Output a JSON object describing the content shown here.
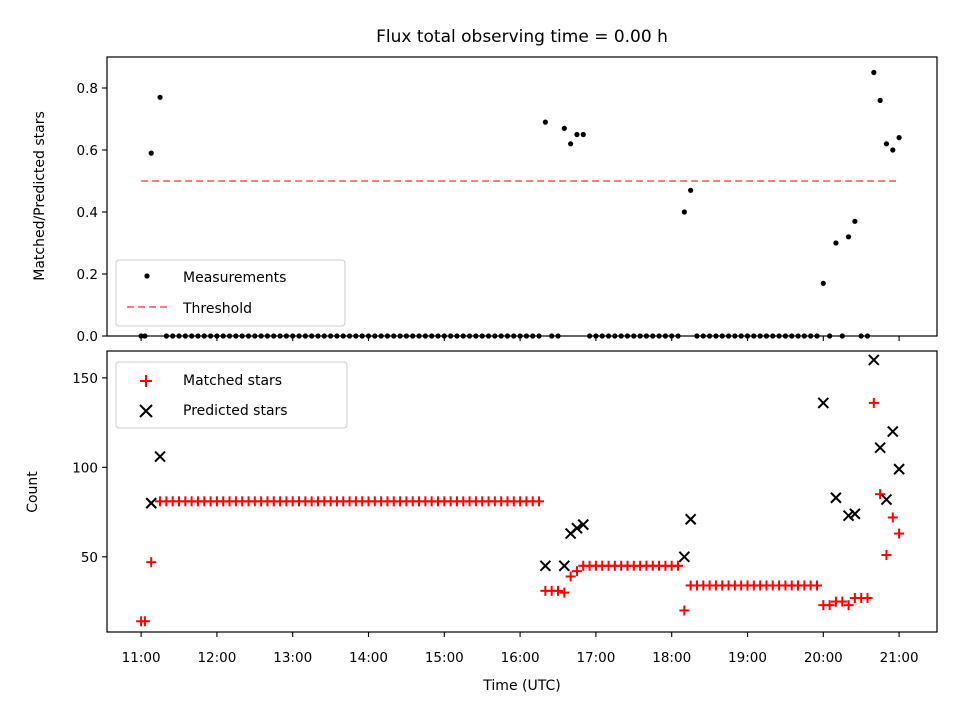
{
  "chart_data": [
    {
      "type": "scatter",
      "title": "Flux total observing time = 0.00 h",
      "xlabel": "",
      "ylabel": "Matched/Predicted stars",
      "ylim": [
        0,
        0.9
      ],
      "xlim": [
        "10:33",
        "21:30"
      ],
      "yticks": [
        "0.0",
        "0.2",
        "0.4",
        "0.6",
        "0.8"
      ],
      "grid": false,
      "legend_position": "lower-left",
      "series": [
        {
          "name": "Measurements",
          "marker": "dot",
          "color": "#000000",
          "points": [
            [
              "11:00",
              0
            ],
            [
              "11:03",
              0
            ],
            [
              "11:08",
              0.59
            ],
            [
              "11:15",
              0.77
            ],
            [
              "11:20",
              0
            ],
            [
              "11:25",
              0
            ],
            [
              "11:30",
              0
            ],
            [
              "11:35",
              0
            ],
            [
              "11:40",
              0
            ],
            [
              "11:45",
              0
            ],
            [
              "11:50",
              0
            ],
            [
              "11:55",
              0
            ],
            [
              "12:00",
              0
            ],
            [
              "12:05",
              0
            ],
            [
              "12:10",
              0
            ],
            [
              "12:15",
              0
            ],
            [
              "12:20",
              0
            ],
            [
              "12:25",
              0
            ],
            [
              "12:30",
              0
            ],
            [
              "12:35",
              0
            ],
            [
              "12:40",
              0
            ],
            [
              "12:45",
              0
            ],
            [
              "12:50",
              0
            ],
            [
              "12:55",
              0
            ],
            [
              "13:00",
              0
            ],
            [
              "13:05",
              0
            ],
            [
              "13:10",
              0
            ],
            [
              "13:15",
              0
            ],
            [
              "13:20",
              0
            ],
            [
              "13:25",
              0
            ],
            [
              "13:30",
              0
            ],
            [
              "13:35",
              0
            ],
            [
              "13:40",
              0
            ],
            [
              "13:45",
              0
            ],
            [
              "13:50",
              0
            ],
            [
              "13:55",
              0
            ],
            [
              "14:00",
              0
            ],
            [
              "14:05",
              0
            ],
            [
              "14:10",
              0
            ],
            [
              "14:15",
              0
            ],
            [
              "14:20",
              0
            ],
            [
              "14:25",
              0
            ],
            [
              "14:30",
              0
            ],
            [
              "14:35",
              0
            ],
            [
              "14:40",
              0
            ],
            [
              "14:45",
              0
            ],
            [
              "14:50",
              0
            ],
            [
              "14:55",
              0
            ],
            [
              "15:00",
              0
            ],
            [
              "15:05",
              0
            ],
            [
              "15:10",
              0
            ],
            [
              "15:15",
              0
            ],
            [
              "15:20",
              0
            ],
            [
              "15:25",
              0
            ],
            [
              "15:30",
              0
            ],
            [
              "15:35",
              0
            ],
            [
              "15:40",
              0
            ],
            [
              "15:45",
              0
            ],
            [
              "15:50",
              0
            ],
            [
              "15:55",
              0
            ],
            [
              "16:00",
              0
            ],
            [
              "16:05",
              0
            ],
            [
              "16:10",
              0
            ],
            [
              "16:15",
              0
            ],
            [
              "16:20",
              0.69
            ],
            [
              "16:25",
              0
            ],
            [
              "16:30",
              0
            ],
            [
              "16:35",
              0.67
            ],
            [
              "16:40",
              0.62
            ],
            [
              "16:45",
              0.65
            ],
            [
              "16:50",
              0.65
            ],
            [
              "16:55",
              0
            ],
            [
              "17:00",
              0
            ],
            [
              "17:05",
              0
            ],
            [
              "17:10",
              0
            ],
            [
              "17:15",
              0
            ],
            [
              "17:20",
              0
            ],
            [
              "17:25",
              0
            ],
            [
              "17:30",
              0
            ],
            [
              "17:35",
              0
            ],
            [
              "17:40",
              0
            ],
            [
              "17:45",
              0
            ],
            [
              "17:50",
              0
            ],
            [
              "17:55",
              0
            ],
            [
              "18:00",
              0
            ],
            [
              "18:05",
              0
            ],
            [
              "18:10",
              0.4
            ],
            [
              "18:15",
              0.47
            ],
            [
              "18:20",
              0
            ],
            [
              "18:25",
              0
            ],
            [
              "18:30",
              0
            ],
            [
              "18:35",
              0
            ],
            [
              "18:40",
              0
            ],
            [
              "18:45",
              0
            ],
            [
              "18:50",
              0
            ],
            [
              "18:55",
              0
            ],
            [
              "19:00",
              0
            ],
            [
              "19:05",
              0
            ],
            [
              "19:10",
              0
            ],
            [
              "19:15",
              0
            ],
            [
              "19:20",
              0
            ],
            [
              "19:25",
              0
            ],
            [
              "19:30",
              0
            ],
            [
              "19:35",
              0
            ],
            [
              "19:40",
              0
            ],
            [
              "19:45",
              0
            ],
            [
              "19:50",
              0
            ],
            [
              "19:55",
              0
            ],
            [
              "20:00",
              0.17
            ],
            [
              "20:05",
              0
            ],
            [
              "20:10",
              0.3
            ],
            [
              "20:15",
              0
            ],
            [
              "20:20",
              0.32
            ],
            [
              "20:25",
              0.37
            ],
            [
              "20:30",
              0
            ],
            [
              "20:35",
              0
            ],
            [
              "20:40",
              0.85
            ],
            [
              "20:45",
              0.76
            ],
            [
              "20:50",
              0.62
            ],
            [
              "20:55",
              0.6
            ],
            [
              "21:00",
              0.64
            ]
          ]
        },
        {
          "name": "Threshold",
          "marker": "dashed-line",
          "color": "#ff7f7f",
          "points": [
            [
              "11:00",
              0.5
            ],
            [
              "21:00",
              0.5
            ]
          ]
        }
      ]
    },
    {
      "type": "scatter",
      "title": "",
      "xlabel": "Time (UTC)",
      "ylabel": "Count",
      "ylim": [
        8,
        165
      ],
      "xlim": [
        "10:33",
        "21:30"
      ],
      "yticks": [
        "50",
        "100",
        "150"
      ],
      "xticks": [
        "11:00",
        "12:00",
        "13:00",
        "14:00",
        "15:00",
        "16:00",
        "17:00",
        "18:00",
        "19:00",
        "20:00",
        "21:00"
      ],
      "grid": false,
      "legend_position": "upper-left",
      "series": [
        {
          "name": "Matched stars",
          "marker": "plus",
          "color": "#ff0000",
          "points": [
            [
              "11:00",
              14
            ],
            [
              "11:03",
              14
            ],
            [
              "11:08",
              47
            ],
            [
              "11:15",
              81
            ],
            [
              "11:20",
              81
            ],
            [
              "11:25",
              81
            ],
            [
              "11:30",
              81
            ],
            [
              "11:35",
              81
            ],
            [
              "11:40",
              81
            ],
            [
              "11:45",
              81
            ],
            [
              "11:50",
              81
            ],
            [
              "11:55",
              81
            ],
            [
              "12:00",
              81
            ],
            [
              "12:05",
              81
            ],
            [
              "12:10",
              81
            ],
            [
              "12:15",
              81
            ],
            [
              "12:20",
              81
            ],
            [
              "12:25",
              81
            ],
            [
              "12:30",
              81
            ],
            [
              "12:35",
              81
            ],
            [
              "12:40",
              81
            ],
            [
              "12:45",
              81
            ],
            [
              "12:50",
              81
            ],
            [
              "12:55",
              81
            ],
            [
              "13:00",
              81
            ],
            [
              "13:05",
              81
            ],
            [
              "13:10",
              81
            ],
            [
              "13:15",
              81
            ],
            [
              "13:20",
              81
            ],
            [
              "13:25",
              81
            ],
            [
              "13:30",
              81
            ],
            [
              "13:35",
              81
            ],
            [
              "13:40",
              81
            ],
            [
              "13:45",
              81
            ],
            [
              "13:50",
              81
            ],
            [
              "13:55",
              81
            ],
            [
              "14:00",
              81
            ],
            [
              "14:05",
              81
            ],
            [
              "14:10",
              81
            ],
            [
              "14:15",
              81
            ],
            [
              "14:20",
              81
            ],
            [
              "14:25",
              81
            ],
            [
              "14:30",
              81
            ],
            [
              "14:35",
              81
            ],
            [
              "14:40",
              81
            ],
            [
              "14:45",
              81
            ],
            [
              "14:50",
              81
            ],
            [
              "14:55",
              81
            ],
            [
              "15:00",
              81
            ],
            [
              "15:05",
              81
            ],
            [
              "15:10",
              81
            ],
            [
              "15:15",
              81
            ],
            [
              "15:20",
              81
            ],
            [
              "15:25",
              81
            ],
            [
              "15:30",
              81
            ],
            [
              "15:35",
              81
            ],
            [
              "15:40",
              81
            ],
            [
              "15:45",
              81
            ],
            [
              "15:50",
              81
            ],
            [
              "15:55",
              81
            ],
            [
              "16:00",
              81
            ],
            [
              "16:05",
              81
            ],
            [
              "16:10",
              81
            ],
            [
              "16:15",
              81
            ],
            [
              "16:20",
              31
            ],
            [
              "16:25",
              31
            ],
            [
              "16:30",
              31
            ],
            [
              "16:35",
              30
            ],
            [
              "16:40",
              39
            ],
            [
              "16:45",
              42
            ],
            [
              "16:50",
              45
            ],
            [
              "16:55",
              45
            ],
            [
              "17:00",
              45
            ],
            [
              "17:05",
              45
            ],
            [
              "17:10",
              45
            ],
            [
              "17:15",
              45
            ],
            [
              "17:20",
              45
            ],
            [
              "17:25",
              45
            ],
            [
              "17:30",
              45
            ],
            [
              "17:35",
              45
            ],
            [
              "17:40",
              45
            ],
            [
              "17:45",
              45
            ],
            [
              "17:50",
              45
            ],
            [
              "17:55",
              45
            ],
            [
              "18:00",
              45
            ],
            [
              "18:05",
              45
            ],
            [
              "18:10",
              20
            ],
            [
              "18:15",
              34
            ],
            [
              "18:20",
              34
            ],
            [
              "18:25",
              34
            ],
            [
              "18:30",
              34
            ],
            [
              "18:35",
              34
            ],
            [
              "18:40",
              34
            ],
            [
              "18:45",
              34
            ],
            [
              "18:50",
              34
            ],
            [
              "18:55",
              34
            ],
            [
              "19:00",
              34
            ],
            [
              "19:05",
              34
            ],
            [
              "19:10",
              34
            ],
            [
              "19:15",
              34
            ],
            [
              "19:20",
              34
            ],
            [
              "19:25",
              34
            ],
            [
              "19:30",
              34
            ],
            [
              "19:35",
              34
            ],
            [
              "19:40",
              34
            ],
            [
              "19:45",
              34
            ],
            [
              "19:50",
              34
            ],
            [
              "19:55",
              34
            ],
            [
              "20:00",
              23
            ],
            [
              "20:05",
              23
            ],
            [
              "20:10",
              25
            ],
            [
              "20:15",
              25
            ],
            [
              "20:20",
              23
            ],
            [
              "20:25",
              27
            ],
            [
              "20:30",
              27
            ],
            [
              "20:35",
              27
            ],
            [
              "20:40",
              136
            ],
            [
              "20:45",
              85
            ],
            [
              "20:50",
              51
            ],
            [
              "20:55",
              72
            ],
            [
              "21:00",
              63
            ]
          ]
        },
        {
          "name": "Predicted stars",
          "marker": "x",
          "color": "#000000",
          "points": [
            [
              "11:08",
              80
            ],
            [
              "11:15",
              106
            ],
            [
              "16:20",
              45
            ],
            [
              "16:35",
              45
            ],
            [
              "16:40",
              63
            ],
            [
              "16:45",
              66
            ],
            [
              "16:50",
              68
            ],
            [
              "18:10",
              50
            ],
            [
              "18:15",
              71
            ],
            [
              "20:00",
              136
            ],
            [
              "20:10",
              83
            ],
            [
              "20:20",
              73
            ],
            [
              "20:25",
              74
            ],
            [
              "20:40",
              160
            ],
            [
              "20:45",
              111
            ],
            [
              "20:50",
              82
            ],
            [
              "20:55",
              120
            ],
            [
              "21:00",
              99
            ]
          ]
        }
      ]
    }
  ]
}
